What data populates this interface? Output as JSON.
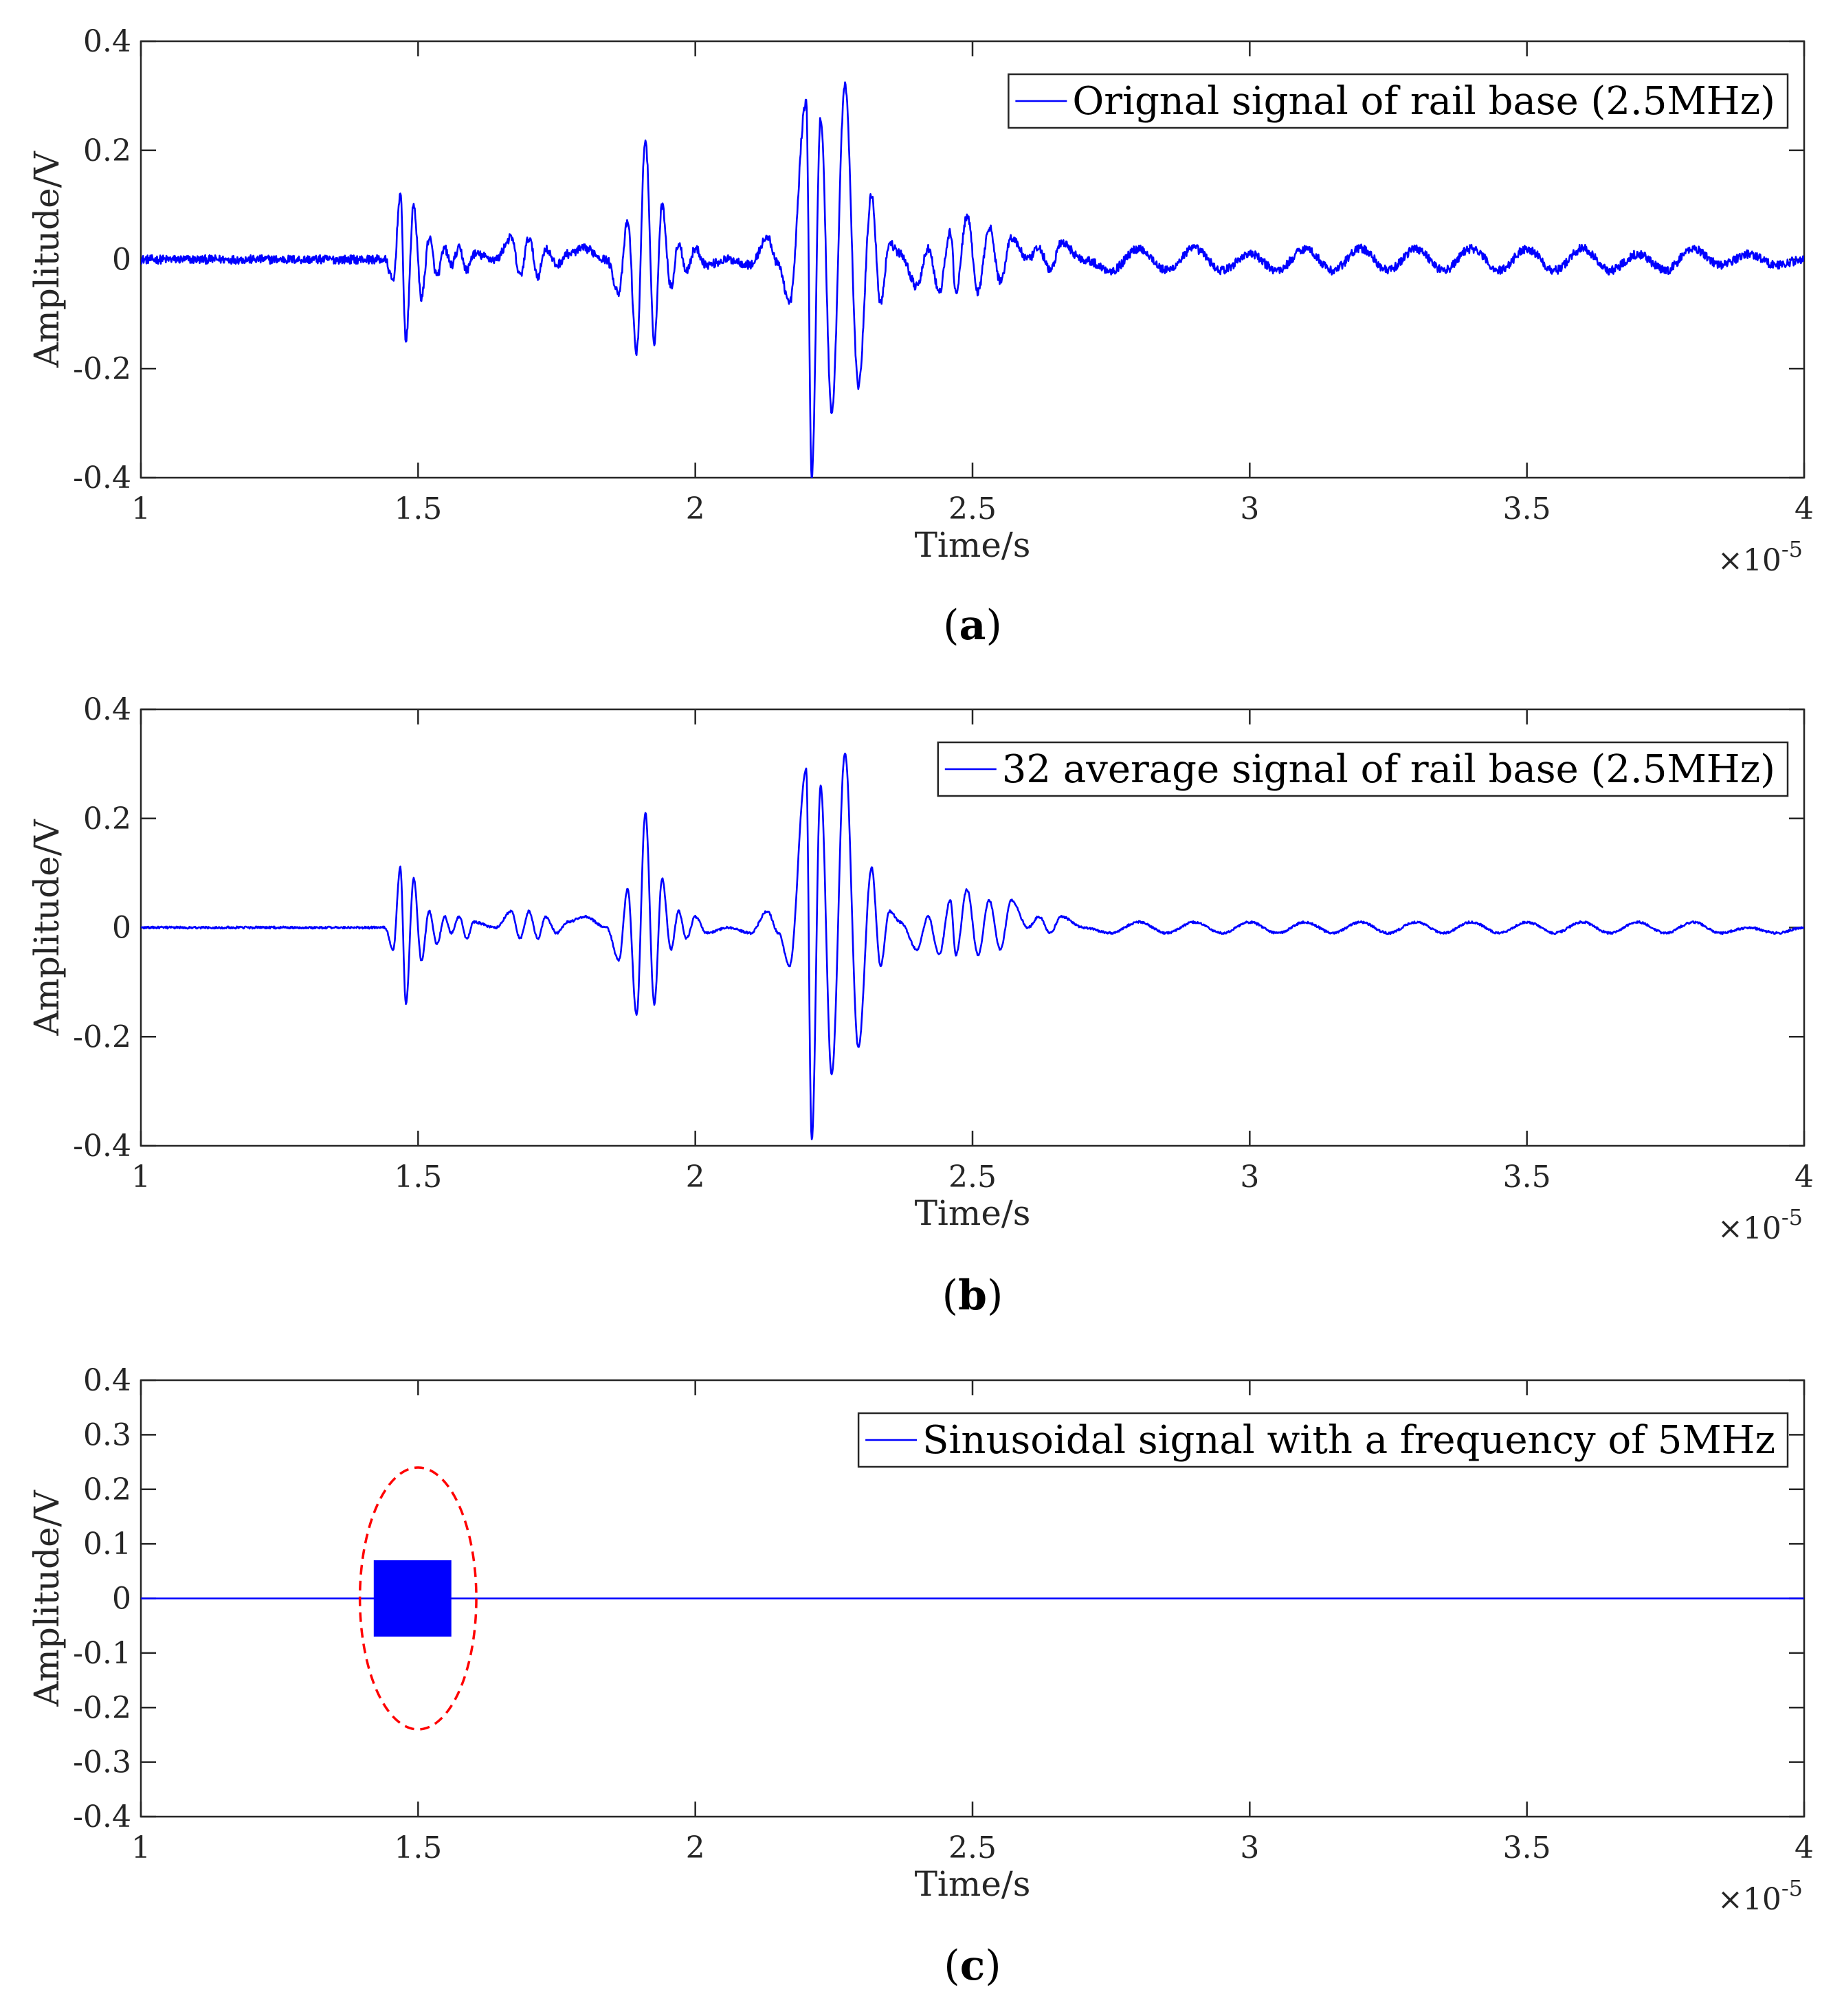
{
  "chart_data": [
    {
      "id": "a",
      "type": "line",
      "caption": "a",
      "xlabel": "Time/s",
      "ylabel": "Amplitude/V",
      "x_multiplier_base": "×10",
      "x_multiplier_exp": "-5",
      "xlim": [
        1,
        4
      ],
      "ylim": [
        -0.4,
        0.4
      ],
      "xticks": [
        1,
        1.5,
        2,
        2.5,
        3,
        3.5,
        4
      ],
      "xtick_labels": [
        "1",
        "1.5",
        "2",
        "2.5",
        "3",
        "3.5",
        "4"
      ],
      "yticks": [
        -0.4,
        -0.2,
        0,
        0.2,
        0.4
      ],
      "ytick_labels": [
        "-0.4",
        "-0.2",
        "0",
        "0.2",
        "0.4"
      ],
      "legend": "Orignal signal of rail base (2.5MHz)",
      "legend_position": "top-right",
      "line_color": "#0000ff",
      "noise": 0.008,
      "series": [
        {
          "name": "Orignal signal of rail base (2.5MHz)",
          "x": [
            1.0,
            1.44,
            1.455,
            1.468,
            1.478,
            1.492,
            1.506,
            1.52,
            1.534,
            1.548,
            1.56,
            1.574,
            1.588,
            1.6,
            1.64,
            1.668,
            1.684,
            1.7,
            1.716,
            1.73,
            1.75,
            1.77,
            1.8,
            1.84,
            1.862,
            1.878,
            1.894,
            1.91,
            1.926,
            1.94,
            1.956,
            1.97,
            1.984,
            2.0,
            2.02,
            2.06,
            2.1,
            2.13,
            2.15,
            2.17,
            2.2,
            2.21,
            2.226,
            2.246,
            2.27,
            2.294,
            2.318,
            2.334,
            2.35,
            2.37,
            2.4,
            2.42,
            2.44,
            2.46,
            2.47,
            2.49,
            2.51,
            2.53,
            2.55,
            2.57,
            2.6,
            2.62,
            2.64,
            2.66,
            2.7,
            2.75,
            2.8,
            2.85,
            2.9,
            2.95,
            3.0,
            3.05,
            3.1,
            3.15,
            3.2,
            3.25,
            3.3,
            3.35,
            3.4,
            3.45,
            3.5,
            3.55,
            3.6,
            3.65,
            3.7,
            3.75,
            3.8,
            3.85,
            3.9,
            3.95,
            4.0
          ],
          "y": [
            0.0,
            0.0,
            -0.04,
            0.12,
            -0.15,
            0.1,
            -0.07,
            0.04,
            -0.03,
            0.02,
            -0.01,
            0.02,
            -0.02,
            0.01,
            0.0,
            0.04,
            -0.03,
            0.04,
            -0.03,
            0.02,
            -0.01,
            0.01,
            0.02,
            0.0,
            -0.06,
            0.07,
            -0.17,
            0.22,
            -0.15,
            0.1,
            -0.05,
            0.03,
            -0.02,
            0.02,
            -0.01,
            0.0,
            -0.01,
            0.04,
            -0.01,
            -0.08,
            0.29,
            -0.4,
            0.26,
            -0.28,
            0.32,
            -0.23,
            0.12,
            -0.08,
            0.03,
            0.01,
            -0.05,
            0.02,
            -0.06,
            0.05,
            -0.06,
            0.08,
            -0.06,
            0.06,
            -0.04,
            0.04,
            0.0,
            0.02,
            -0.02,
            0.03,
            0.0,
            -0.02,
            0.02,
            -0.02,
            0.02,
            -0.02,
            0.01,
            -0.02,
            0.02,
            -0.02,
            0.02,
            -0.02,
            0.02,
            -0.02,
            0.02,
            -0.02,
            0.02,
            -0.02,
            0.02,
            -0.02,
            0.01,
            -0.02,
            0.02,
            -0.01,
            0.01,
            -0.01,
            0.0
          ]
        }
      ]
    },
    {
      "id": "b",
      "type": "line",
      "caption": "b",
      "xlabel": "Time/s",
      "ylabel": "Amplitude/V",
      "x_multiplier_base": "×10",
      "x_multiplier_exp": "-5",
      "xlim": [
        1,
        4
      ],
      "ylim": [
        -0.4,
        0.4
      ],
      "xticks": [
        1,
        1.5,
        2,
        2.5,
        3,
        3.5,
        4
      ],
      "xtick_labels": [
        "1",
        "1.5",
        "2",
        "2.5",
        "3",
        "3.5",
        "4"
      ],
      "yticks": [
        -0.4,
        -0.2,
        0,
        0.2,
        0.4
      ],
      "ytick_labels": [
        "-0.4",
        "-0.2",
        "0",
        "0.2",
        "0.4"
      ],
      "legend": "32 average signal of rail base (2.5MHz)",
      "legend_position": "top-right",
      "line_color": "#0000ff",
      "noise": 0.002,
      "series": [
        {
          "name": "32 average signal of rail base (2.5MHz)",
          "x": [
            1.0,
            1.44,
            1.455,
            1.468,
            1.478,
            1.492,
            1.506,
            1.52,
            1.534,
            1.548,
            1.56,
            1.574,
            1.588,
            1.6,
            1.64,
            1.668,
            1.684,
            1.7,
            1.716,
            1.73,
            1.75,
            1.77,
            1.8,
            1.84,
            1.862,
            1.878,
            1.894,
            1.91,
            1.926,
            1.94,
            1.956,
            1.97,
            1.984,
            2.0,
            2.02,
            2.06,
            2.1,
            2.13,
            2.15,
            2.17,
            2.2,
            2.21,
            2.226,
            2.246,
            2.27,
            2.294,
            2.318,
            2.334,
            2.35,
            2.37,
            2.4,
            2.42,
            2.44,
            2.46,
            2.47,
            2.49,
            2.51,
            2.53,
            2.55,
            2.57,
            2.6,
            2.62,
            2.64,
            2.66,
            2.7,
            2.75,
            2.8,
            2.85,
            2.9,
            2.95,
            3.0,
            3.05,
            3.1,
            3.15,
            3.2,
            3.25,
            3.3,
            3.35,
            3.4,
            3.45,
            3.5,
            3.55,
            3.6,
            3.65,
            3.7,
            3.75,
            3.8,
            3.85,
            3.9,
            3.95,
            4.0
          ],
          "y": [
            0.0,
            0.0,
            -0.04,
            0.11,
            -0.14,
            0.09,
            -0.06,
            0.03,
            -0.03,
            0.02,
            -0.01,
            0.02,
            -0.02,
            0.01,
            0.0,
            0.03,
            -0.02,
            0.03,
            -0.02,
            0.02,
            -0.01,
            0.01,
            0.02,
            0.0,
            -0.06,
            0.07,
            -0.16,
            0.21,
            -0.14,
            0.09,
            -0.04,
            0.03,
            -0.02,
            0.02,
            -0.01,
            0.0,
            -0.01,
            0.03,
            -0.01,
            -0.07,
            0.29,
            -0.39,
            0.26,
            -0.27,
            0.32,
            -0.22,
            0.11,
            -0.07,
            0.03,
            0.01,
            -0.04,
            0.02,
            -0.05,
            0.05,
            -0.05,
            0.07,
            -0.05,
            0.05,
            -0.04,
            0.05,
            0.0,
            0.02,
            -0.01,
            0.02,
            0.0,
            -0.01,
            0.01,
            -0.01,
            0.01,
            -0.01,
            0.01,
            -0.01,
            0.01,
            -0.01,
            0.01,
            -0.01,
            0.01,
            -0.01,
            0.01,
            -0.01,
            0.01,
            -0.01,
            0.01,
            -0.01,
            0.01,
            -0.01,
            0.01,
            -0.01,
            0.0,
            -0.01,
            0.0
          ]
        }
      ]
    },
    {
      "id": "c",
      "type": "line",
      "caption": "c",
      "xlabel": "Time/s",
      "ylabel": "Amplitude/V",
      "x_multiplier_base": "×10",
      "x_multiplier_exp": "-5",
      "xlim": [
        1,
        4
      ],
      "ylim": [
        -0.4,
        0.4
      ],
      "xticks": [
        1,
        1.5,
        2,
        2.5,
        3,
        3.5,
        4
      ],
      "xtick_labels": [
        "1",
        "1.5",
        "2",
        "2.5",
        "3",
        "3.5",
        "4"
      ],
      "yticks": [
        -0.4,
        -0.3,
        -0.2,
        -0.1,
        0,
        0.1,
        0.2,
        0.3,
        0.4
      ],
      "ytick_labels": [
        "-0.4",
        "-0.3",
        "-0.2",
        "-0.1",
        "0",
        "0.1",
        "0.2",
        "0.3",
        "0.4"
      ],
      "legend": "Sinusoidal signal with a frequency of 5MHz",
      "legend_position": "top-right",
      "line_color": "#0000ff",
      "series": [
        {
          "name": "Sinusoidal signal with a frequency of 5MHz",
          "x": [
            1.0,
            4.0
          ],
          "y": [
            0.0,
            0.0
          ]
        }
      ],
      "burst": {
        "x_start": 1.42,
        "x_end": 1.56,
        "amplitude": 0.07,
        "color": "#0000ff"
      },
      "annotation": {
        "shape": "dashed-ellipse",
        "center_x": 1.5,
        "center_y": 0.0,
        "radius_x": 0.105,
        "radius_y": 0.24,
        "color": "#ff0000"
      }
    }
  ]
}
